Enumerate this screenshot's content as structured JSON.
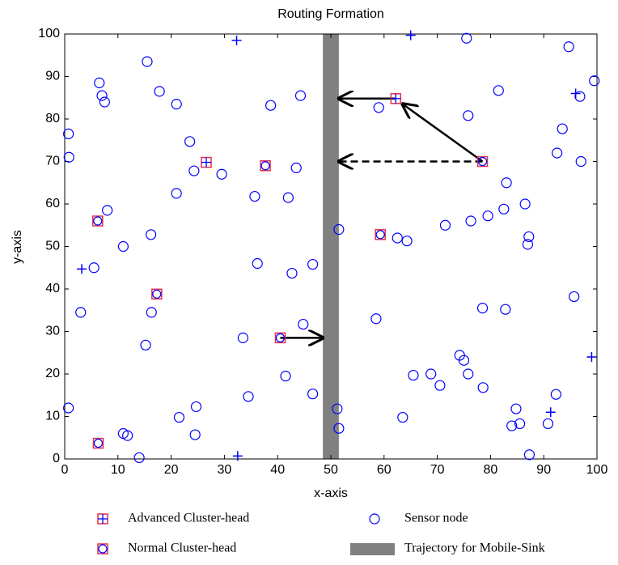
{
  "chart_data": {
    "type": "scatter",
    "title": "Routing Formation",
    "x_label": "x-axis",
    "y_label": "y-axis",
    "xlim": [
      0,
      100
    ],
    "ylim": [
      0,
      100
    ],
    "xticks": [
      0,
      10,
      20,
      30,
      40,
      50,
      60,
      70,
      80,
      90,
      100
    ],
    "yticks": [
      0,
      10,
      20,
      30,
      40,
      50,
      60,
      70,
      80,
      90,
      100
    ],
    "series": [
      {
        "name": "Sensor node",
        "color": "#0000ff",
        "marker": "circle",
        "x": [
          0.7,
          0.8,
          0.7,
          3,
          5.5,
          6.5,
          7,
          7.5,
          8,
          11,
          11,
          11.8,
          14,
          15.2,
          15.5,
          16.2,
          16.3,
          17.8,
          21,
          21,
          21.5,
          23.5,
          24.3,
          24.5,
          24.7,
          29.5,
          33.5,
          34.5,
          35.7,
          36.2,
          38.7,
          41.5,
          42,
          42.7,
          43.5,
          44.3,
          44.8,
          46.6,
          46.6,
          51.5,
          51.2,
          51.5,
          58.5,
          59,
          62.5,
          63.5,
          64.3,
          65.5,
          68.8,
          70.5,
          71.5,
          74.2,
          75,
          75.5,
          75.8,
          75.8,
          76.3,
          78.5,
          78.6,
          79.5,
          81.5,
          82.5,
          82.8,
          83,
          84,
          84.8,
          85.5,
          86.5,
          87,
          87.2,
          87.3,
          90.8,
          92.3,
          92.5,
          93.5,
          94.7,
          95.7,
          96.8,
          97,
          99.5
        ],
        "y": [
          76.5,
          71,
          12,
          34.5,
          45,
          88.5,
          85.5,
          84,
          58.5,
          50,
          6,
          5.5,
          0.3,
          26.8,
          93.5,
          52.8,
          34.5,
          86.5,
          83.5,
          62.5,
          9.8,
          74.7,
          67.8,
          5.7,
          12.3,
          67,
          28.5,
          14.7,
          61.8,
          46,
          83.2,
          19.5,
          61.5,
          43.7,
          68.5,
          85.5,
          31.7,
          45.8,
          15.3,
          54,
          11.8,
          7.2,
          33,
          82.7,
          52,
          9.8,
          51.3,
          19.7,
          20,
          17.3,
          55,
          24.4,
          23.2,
          99,
          80.8,
          20,
          56,
          35.5,
          16.8,
          57.2,
          86.7,
          58.8,
          35.2,
          65,
          7.8,
          11.8,
          8.3,
          60,
          50.5,
          52.3,
          1,
          8.3,
          15.2,
          72,
          77.7,
          97,
          38.2,
          85.3,
          70,
          89
        ]
      },
      {
        "color": "#0000ff",
        "marker": "plus",
        "x": [
          3.2,
          32.3,
          32.5,
          65,
          91.3,
          96,
          99
        ],
        "y": [
          44.7,
          98.5,
          0.7,
          99.7,
          11,
          86,
          24
        ]
      },
      {
        "name": "Advanced Cluster-head",
        "color": "#e0304a",
        "marker": "square-plus",
        "x": [
          62.2,
          26.6
        ],
        "y": [
          84.8,
          69.8
        ]
      },
      {
        "name": "Normal Cluster-head",
        "color": "#e0304a",
        "marker": "square-circle",
        "x": [
          6.2,
          6.3,
          17.3,
          37.7,
          40.5,
          59.3,
          78.5
        ],
        "y": [
          56,
          3.7,
          38.8,
          69,
          28.5,
          52.8,
          70
        ]
      }
    ],
    "trajectory": {
      "name": "Trajectory for Mobile-Sink",
      "x": [
        48.5,
        51.5
      ],
      "color": "#808080"
    },
    "arrows": [
      {
        "from": [
          78.5,
          70
        ],
        "to": [
          63.5,
          83.5
        ],
        "dashed": false
      },
      {
        "from": [
          78.5,
          70
        ],
        "to": [
          51.5,
          70
        ],
        "dashed": true
      },
      {
        "from": [
          62.2,
          84.8
        ],
        "to": [
          51.5,
          84.8
        ],
        "dashed": false
      },
      {
        "from": [
          40.5,
          28.5
        ],
        "to": [
          48.5,
          28.5
        ],
        "dashed": false
      }
    ]
  }
}
